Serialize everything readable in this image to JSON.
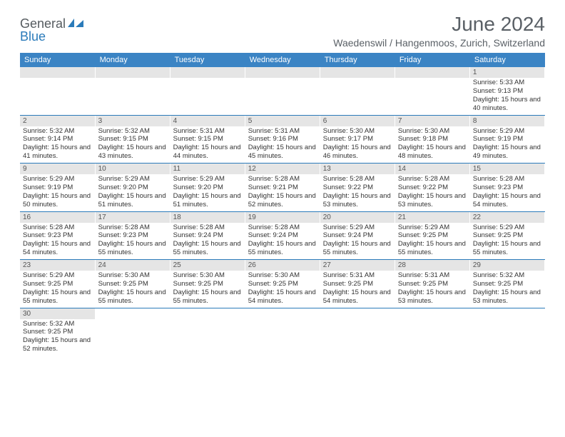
{
  "logo": {
    "text1": "General",
    "text2": "Blue",
    "text_color": "#555b5f",
    "accent_color": "#2b7bba"
  },
  "title": "June 2024",
  "subtitle": "Waedenswil / Hangenmoos, Zurich, Switzerland",
  "colors": {
    "header_bg": "#3b84c4",
    "daynum_bg": "#e5e5e5",
    "border": "#2b7bba"
  },
  "day_headers": [
    "Sunday",
    "Monday",
    "Tuesday",
    "Wednesday",
    "Thursday",
    "Friday",
    "Saturday"
  ],
  "weeks": [
    [
      null,
      null,
      null,
      null,
      null,
      null,
      {
        "n": "1",
        "sr": "Sunrise: 5:33 AM",
        "ss": "Sunset: 9:13 PM",
        "dl": "Daylight: 15 hours and 40 minutes."
      }
    ],
    [
      {
        "n": "2",
        "sr": "Sunrise: 5:32 AM",
        "ss": "Sunset: 9:14 PM",
        "dl": "Daylight: 15 hours and 41 minutes."
      },
      {
        "n": "3",
        "sr": "Sunrise: 5:32 AM",
        "ss": "Sunset: 9:15 PM",
        "dl": "Daylight: 15 hours and 43 minutes."
      },
      {
        "n": "4",
        "sr": "Sunrise: 5:31 AM",
        "ss": "Sunset: 9:15 PM",
        "dl": "Daylight: 15 hours and 44 minutes."
      },
      {
        "n": "5",
        "sr": "Sunrise: 5:31 AM",
        "ss": "Sunset: 9:16 PM",
        "dl": "Daylight: 15 hours and 45 minutes."
      },
      {
        "n": "6",
        "sr": "Sunrise: 5:30 AM",
        "ss": "Sunset: 9:17 PM",
        "dl": "Daylight: 15 hours and 46 minutes."
      },
      {
        "n": "7",
        "sr": "Sunrise: 5:30 AM",
        "ss": "Sunset: 9:18 PM",
        "dl": "Daylight: 15 hours and 48 minutes."
      },
      {
        "n": "8",
        "sr": "Sunrise: 5:29 AM",
        "ss": "Sunset: 9:19 PM",
        "dl": "Daylight: 15 hours and 49 minutes."
      }
    ],
    [
      {
        "n": "9",
        "sr": "Sunrise: 5:29 AM",
        "ss": "Sunset: 9:19 PM",
        "dl": "Daylight: 15 hours and 50 minutes."
      },
      {
        "n": "10",
        "sr": "Sunrise: 5:29 AM",
        "ss": "Sunset: 9:20 PM",
        "dl": "Daylight: 15 hours and 51 minutes."
      },
      {
        "n": "11",
        "sr": "Sunrise: 5:29 AM",
        "ss": "Sunset: 9:20 PM",
        "dl": "Daylight: 15 hours and 51 minutes."
      },
      {
        "n": "12",
        "sr": "Sunrise: 5:28 AM",
        "ss": "Sunset: 9:21 PM",
        "dl": "Daylight: 15 hours and 52 minutes."
      },
      {
        "n": "13",
        "sr": "Sunrise: 5:28 AM",
        "ss": "Sunset: 9:22 PM",
        "dl": "Daylight: 15 hours and 53 minutes."
      },
      {
        "n": "14",
        "sr": "Sunrise: 5:28 AM",
        "ss": "Sunset: 9:22 PM",
        "dl": "Daylight: 15 hours and 53 minutes."
      },
      {
        "n": "15",
        "sr": "Sunrise: 5:28 AM",
        "ss": "Sunset: 9:23 PM",
        "dl": "Daylight: 15 hours and 54 minutes."
      }
    ],
    [
      {
        "n": "16",
        "sr": "Sunrise: 5:28 AM",
        "ss": "Sunset: 9:23 PM",
        "dl": "Daylight: 15 hours and 54 minutes."
      },
      {
        "n": "17",
        "sr": "Sunrise: 5:28 AM",
        "ss": "Sunset: 9:23 PM",
        "dl": "Daylight: 15 hours and 55 minutes."
      },
      {
        "n": "18",
        "sr": "Sunrise: 5:28 AM",
        "ss": "Sunset: 9:24 PM",
        "dl": "Daylight: 15 hours and 55 minutes."
      },
      {
        "n": "19",
        "sr": "Sunrise: 5:28 AM",
        "ss": "Sunset: 9:24 PM",
        "dl": "Daylight: 15 hours and 55 minutes."
      },
      {
        "n": "20",
        "sr": "Sunrise: 5:29 AM",
        "ss": "Sunset: 9:24 PM",
        "dl": "Daylight: 15 hours and 55 minutes."
      },
      {
        "n": "21",
        "sr": "Sunrise: 5:29 AM",
        "ss": "Sunset: 9:25 PM",
        "dl": "Daylight: 15 hours and 55 minutes."
      },
      {
        "n": "22",
        "sr": "Sunrise: 5:29 AM",
        "ss": "Sunset: 9:25 PM",
        "dl": "Daylight: 15 hours and 55 minutes."
      }
    ],
    [
      {
        "n": "23",
        "sr": "Sunrise: 5:29 AM",
        "ss": "Sunset: 9:25 PM",
        "dl": "Daylight: 15 hours and 55 minutes."
      },
      {
        "n": "24",
        "sr": "Sunrise: 5:30 AM",
        "ss": "Sunset: 9:25 PM",
        "dl": "Daylight: 15 hours and 55 minutes."
      },
      {
        "n": "25",
        "sr": "Sunrise: 5:30 AM",
        "ss": "Sunset: 9:25 PM",
        "dl": "Daylight: 15 hours and 55 minutes."
      },
      {
        "n": "26",
        "sr": "Sunrise: 5:30 AM",
        "ss": "Sunset: 9:25 PM",
        "dl": "Daylight: 15 hours and 54 minutes."
      },
      {
        "n": "27",
        "sr": "Sunrise: 5:31 AM",
        "ss": "Sunset: 9:25 PM",
        "dl": "Daylight: 15 hours and 54 minutes."
      },
      {
        "n": "28",
        "sr": "Sunrise: 5:31 AM",
        "ss": "Sunset: 9:25 PM",
        "dl": "Daylight: 15 hours and 53 minutes."
      },
      {
        "n": "29",
        "sr": "Sunrise: 5:32 AM",
        "ss": "Sunset: 9:25 PM",
        "dl": "Daylight: 15 hours and 53 minutes."
      }
    ],
    [
      {
        "n": "30",
        "sr": "Sunrise: 5:32 AM",
        "ss": "Sunset: 9:25 PM",
        "dl": "Daylight: 15 hours and 52 minutes."
      },
      null,
      null,
      null,
      null,
      null,
      null
    ]
  ]
}
